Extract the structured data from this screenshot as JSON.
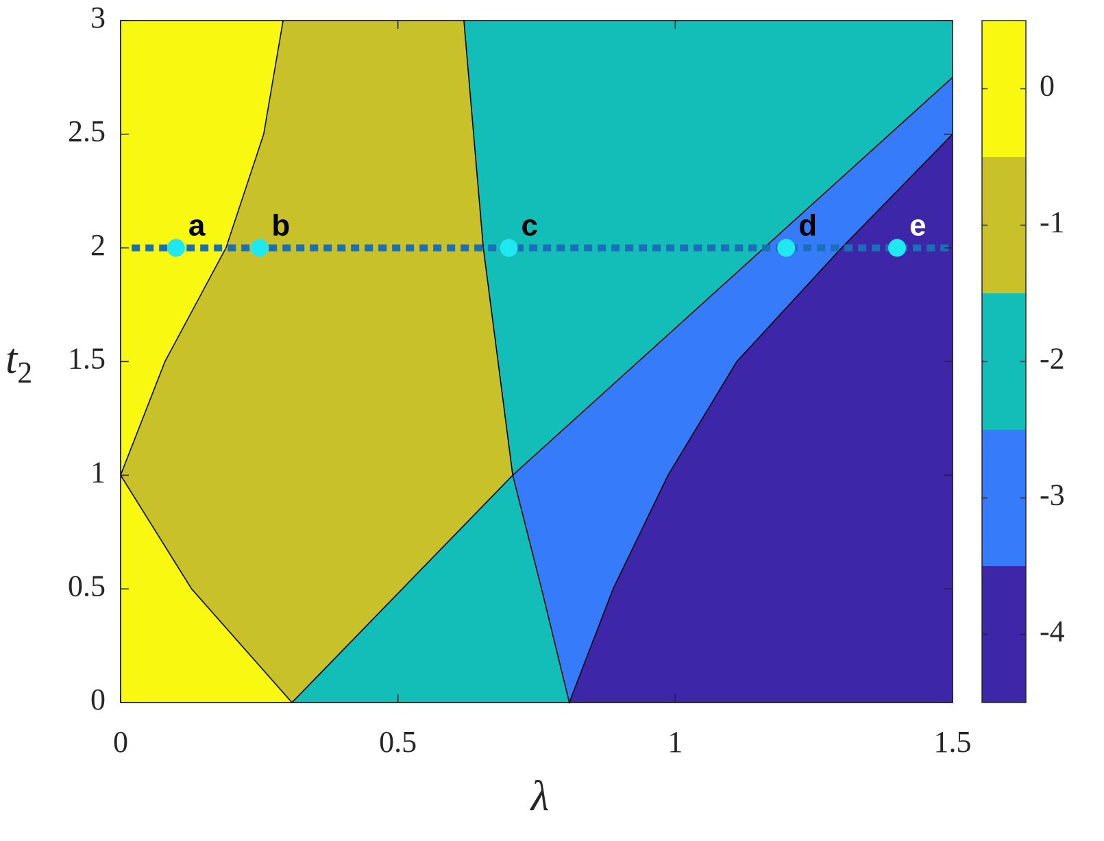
{
  "chart_data": {
    "type": "phase",
    "xlabel": "λ",
    "ylabel": "t",
    "ylabel_sub": "2",
    "xlim": [
      0,
      1.5
    ],
    "ylim": [
      0,
      3
    ],
    "xticks": [
      0,
      0.5,
      1,
      1.5
    ],
    "yticks": [
      0,
      0.5,
      1,
      1.5,
      2,
      2.5,
      3
    ],
    "regions": [
      {
        "value": 0,
        "x": [
          0,
          0,
          0.293,
          0.258,
          0.19,
          0.08,
          0
        ],
        "y": [
          1,
          3,
          3,
          2.5,
          2,
          1.5,
          1
        ]
      },
      {
        "value": 0,
        "x": [
          0,
          0,
          0.128,
          0.309
        ],
        "y": [
          0,
          1,
          0.5,
          0
        ]
      },
      {
        "value": -1,
        "x": [
          0,
          0.08,
          0.19,
          0.258,
          0.293,
          0.619,
          0.654,
          0.707,
          0.309,
          0.128
        ],
        "y": [
          1,
          1.5,
          2,
          2.5,
          3,
          3,
          2,
          1,
          0,
          0.5
        ]
      },
      {
        "value": -2,
        "x": [
          0.619,
          1.5,
          1.5,
          0.707,
          0.654
        ],
        "y": [
          3,
          3,
          2.75,
          1,
          2
        ]
      },
      {
        "value": -2,
        "x": [
          0.309,
          0.707,
          0.759,
          0.809
        ],
        "y": [
          0,
          1,
          0.5,
          0
        ]
      },
      {
        "value": -3,
        "x": [
          0.707,
          1.5,
          1.5,
          1.3,
          1.111,
          0.987,
          0.888,
          0.809,
          0.759
        ],
        "y": [
          1,
          2.75,
          2.5,
          2,
          1.5,
          1,
          0.5,
          0,
          0.5
        ]
      },
      {
        "value": -4,
        "x": [
          0.809,
          0.888,
          0.987,
          1.111,
          1.3,
          1.5,
          1.5
        ],
        "y": [
          0,
          0.5,
          1,
          1.5,
          2,
          2.5,
          0
        ]
      }
    ],
    "path_line": {
      "color": "#1a6fb8",
      "x": [
        0.02,
        1.5
      ],
      "y": [
        2,
        2
      ]
    },
    "points": {
      "color": "#20e8f0",
      "x": [
        0.1,
        0.25,
        0.7,
        1.2,
        1.4
      ],
      "y": [
        2,
        2,
        2,
        2,
        2
      ],
      "labels": [
        "a",
        "b",
        "c",
        "d",
        "e"
      ],
      "label_colors": [
        "#000000",
        "#000000",
        "#000000",
        "#000000",
        "#ffffff"
      ]
    },
    "colorbar": {
      "lim": [
        -4.5,
        0.5
      ],
      "ticks": [
        0,
        -1,
        -2,
        -3,
        -4
      ],
      "levels": [
        0,
        -1,
        -2,
        -3,
        -4
      ],
      "colors": [
        "#f8f810",
        "#c9c12a",
        "#13bdb8",
        "#357bfa",
        "#3d27a8"
      ]
    }
  }
}
